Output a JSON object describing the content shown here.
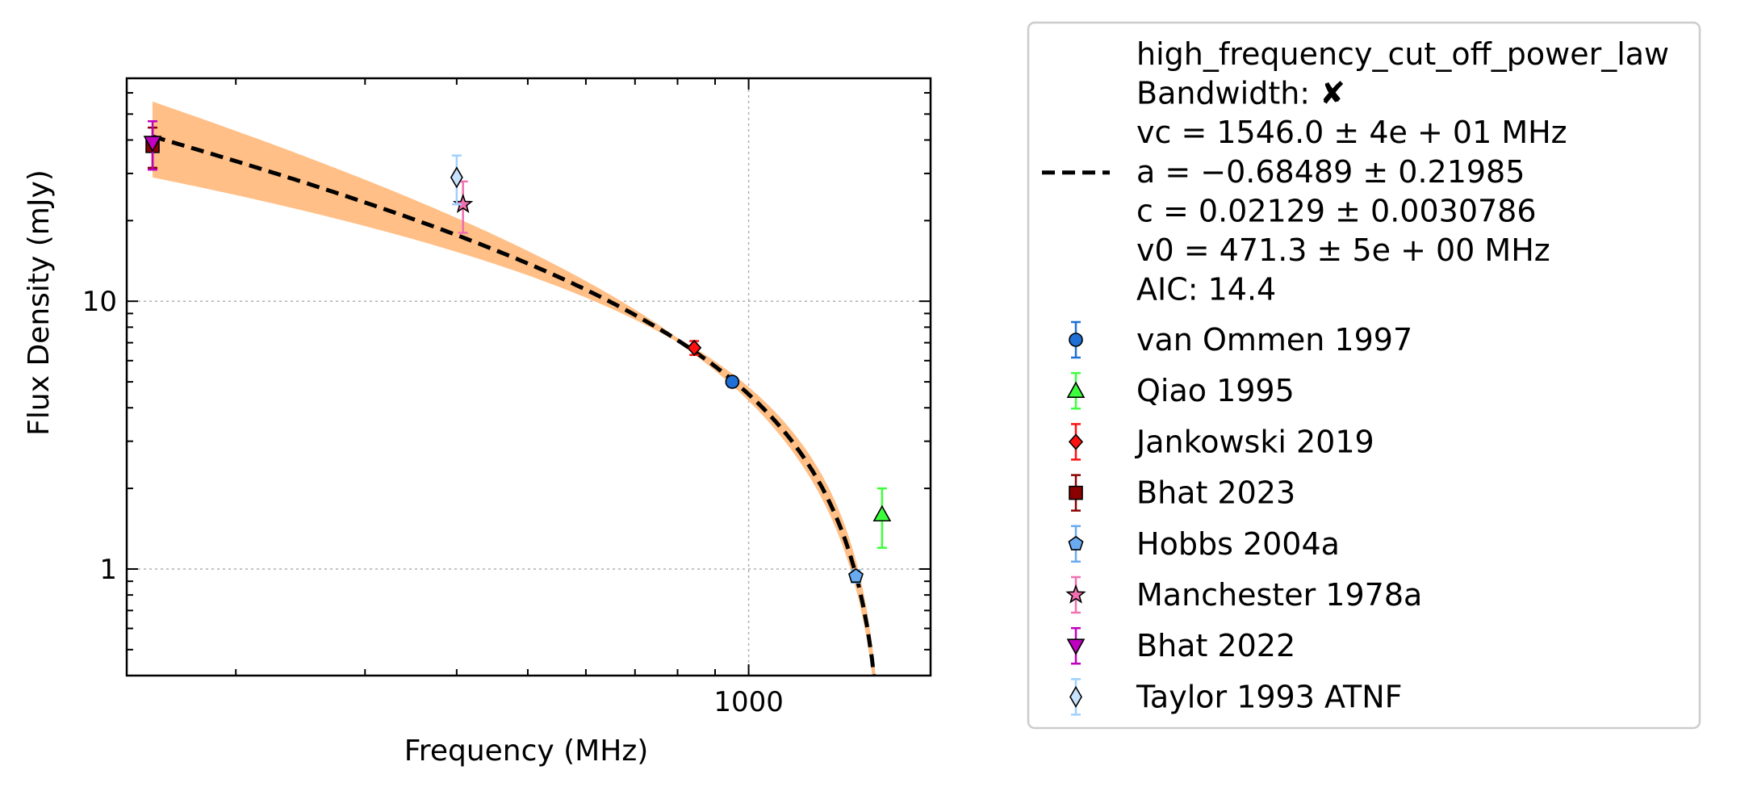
{
  "chart_data": {
    "type": "scatter",
    "xlabel": "Frequency (MHz)",
    "ylabel": "Flux Density (mJy)",
    "x_scale": "log",
    "y_scale": "log",
    "xlim": [
      142,
      1770
    ],
    "ylim": [
      0.4,
      68
    ],
    "x_ticks": [
      {
        "value": 1000,
        "label": "1000"
      }
    ],
    "y_ticks": [
      {
        "value": 1,
        "label": "1"
      },
      {
        "value": 10,
        "label": "10"
      }
    ],
    "grid": true,
    "legend_position": "outside-right",
    "fit": {
      "model": "high_frequency_cut_off_power_law",
      "lines": [
        "high_frequency_cut_off_power_law",
        "Bandwidth: ✘",
        "vc = 1546.0 ± 4e + 01 MHz",
        "a = −0.68489 ± 0.21985",
        "c = 0.02129 ± 0.0030786",
        "v0 = 471.3 ± 5e + 00 MHz",
        "AIC: 14.4"
      ],
      "vc": 1546.0,
      "a": -0.68489,
      "c": 0.02129,
      "v0": 471.3,
      "line_color": "#000000",
      "band_color": "#ffbf86"
    },
    "series": [
      {
        "name": "van Ommen 1997",
        "marker": "circle",
        "color": "#1f6fd6",
        "err_color": "#1f6fd6",
        "points": [
          {
            "x": 950,
            "y": 5.0,
            "yerr": 0.2
          }
        ]
      },
      {
        "name": "Qiao 1995",
        "marker": "triangle-up",
        "color": "#3cff3c",
        "err_color": "#3cff3c",
        "points": [
          {
            "x": 1520,
            "y": 1.6,
            "yerr": 0.4
          }
        ]
      },
      {
        "name": "Jankowski 2019",
        "marker": "diamond",
        "color": "#ff1010",
        "err_color": "#ff1010",
        "points": [
          {
            "x": 843,
            "y": 6.7,
            "yerr": 0.4
          }
        ]
      },
      {
        "name": "Bhat 2023",
        "marker": "square",
        "color": "#8b0000",
        "err_color": "#8b0000",
        "points": [
          {
            "x": 154,
            "y": 38.0,
            "yerr": 6.5
          }
        ]
      },
      {
        "name": "Hobbs 2004a",
        "marker": "pentagon",
        "color": "#6aaaf0",
        "err_color": "#6aaaf0",
        "points": [
          {
            "x": 1400,
            "y": 0.94,
            "yerr": 0.05
          }
        ]
      },
      {
        "name": "Manchester 1978a",
        "marker": "star",
        "color": "#f070b0",
        "err_color": "#f070b0",
        "points": [
          {
            "x": 408,
            "y": 23.0,
            "yerr": 5.0
          }
        ]
      },
      {
        "name": "Bhat 2022",
        "marker": "triangle-down",
        "color": "#c000c0",
        "err_color": "#c000c0",
        "points": [
          {
            "x": 154,
            "y": 39.0,
            "yerr": 8.0
          }
        ]
      },
      {
        "name": "Taylor 1993 ATNF",
        "marker": "thin-diamond",
        "color": "#c6e2ff",
        "err_color": "#9fd0ff",
        "points": [
          {
            "x": 400,
            "y": 29.0,
            "yerr": 6.0
          }
        ]
      }
    ]
  }
}
